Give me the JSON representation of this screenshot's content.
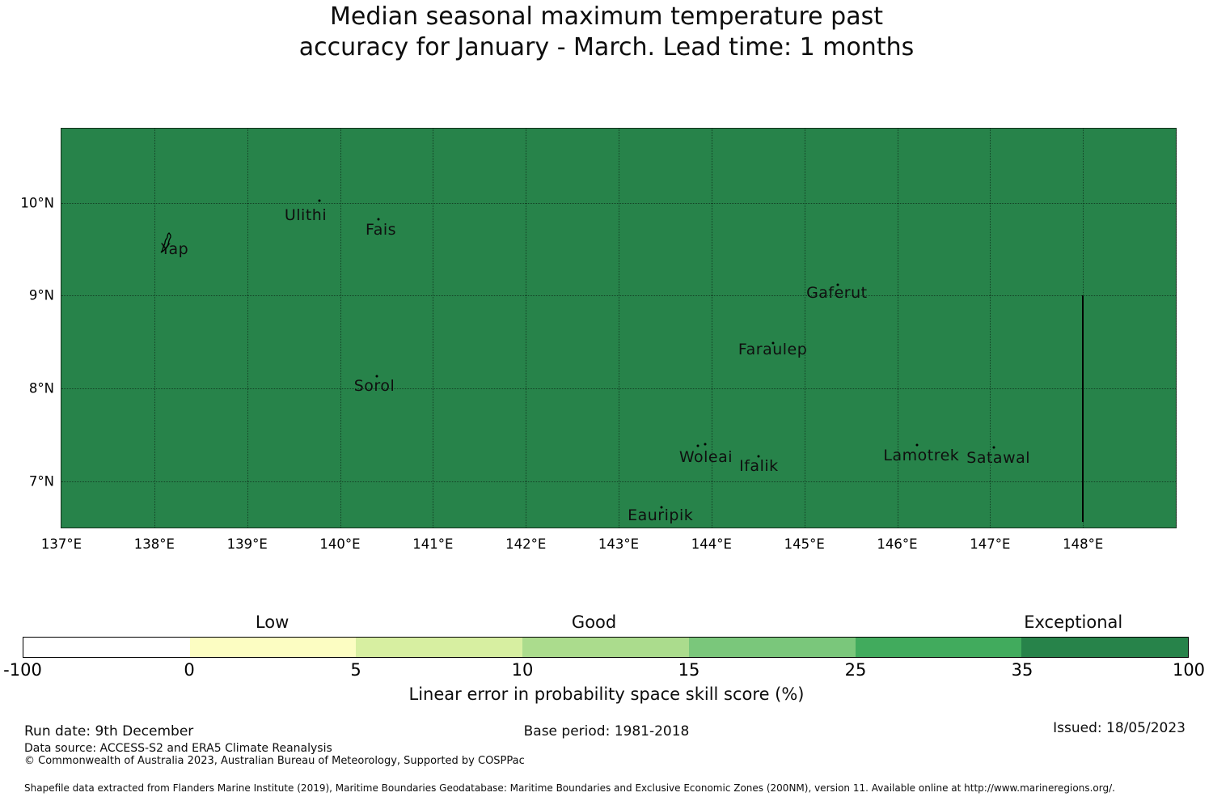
{
  "title": {
    "line1": "Median seasonal maximum temperature past",
    "line2": "accuracy for January - March. Lead time: 1 months"
  },
  "map": {
    "fill_color": "#27834a",
    "extent": {
      "lon_min": 137,
      "lon_max": 149,
      "lat_min": 6.5,
      "lat_max": 10.8
    },
    "x_ticks": [
      {
        "label": "137°E",
        "lon": 137
      },
      {
        "label": "138°E",
        "lon": 138
      },
      {
        "label": "139°E",
        "lon": 139
      },
      {
        "label": "140°E",
        "lon": 140
      },
      {
        "label": "141°E",
        "lon": 141
      },
      {
        "label": "142°E",
        "lon": 142
      },
      {
        "label": "143°E",
        "lon": 143
      },
      {
        "label": "144°E",
        "lon": 144
      },
      {
        "label": "145°E",
        "lon": 145
      },
      {
        "label": "146°E",
        "lon": 146
      },
      {
        "label": "147°E",
        "lon": 147
      },
      {
        "label": "148°E",
        "lon": 148
      }
    ],
    "y_ticks": [
      {
        "label": "10°N",
        "lat": 10
      },
      {
        "label": "9°N",
        "lat": 9
      },
      {
        "label": "8°N",
        "lat": 8
      },
      {
        "label": "7°N",
        "lat": 7
      }
    ],
    "unlabeled_gridline_lons": [
      149
    ],
    "islands": [
      {
        "name": "Yap",
        "label_lon": 138.22,
        "label_lat": 9.5,
        "markers": [
          {
            "type": "shape",
            "lon": 138.14,
            "lat": 9.55
          }
        ]
      },
      {
        "name": "Ulithi",
        "label_lon": 139.63,
        "label_lat": 9.87,
        "markers": [
          {
            "type": "dot",
            "lon": 139.78,
            "lat": 10.02
          }
        ]
      },
      {
        "name": "Fais",
        "label_lon": 140.44,
        "label_lat": 9.71,
        "markers": [
          {
            "type": "dot",
            "lon": 140.41,
            "lat": 9.82
          }
        ]
      },
      {
        "name": "Gaferut",
        "label_lon": 145.35,
        "label_lat": 9.03,
        "markers": [
          {
            "type": "dot",
            "lon": 145.36,
            "lat": 9.12
          }
        ]
      },
      {
        "name": "Faraulep",
        "label_lon": 144.66,
        "label_lat": 8.42,
        "markers": [
          {
            "type": "dot",
            "lon": 144.66,
            "lat": 8.49
          }
        ]
      },
      {
        "name": "Sorol",
        "label_lon": 140.37,
        "label_lat": 8.03,
        "markers": [
          {
            "type": "dot",
            "lon": 140.4,
            "lat": 8.13
          }
        ]
      },
      {
        "name": "Woleai",
        "label_lon": 143.94,
        "label_lat": 7.26,
        "markers": [
          {
            "type": "dot",
            "lon": 143.85,
            "lat": 7.38
          },
          {
            "type": "dot",
            "lon": 143.93,
            "lat": 7.4
          }
        ]
      },
      {
        "name": "Ifalik",
        "label_lon": 144.51,
        "label_lat": 7.16,
        "markers": [
          {
            "type": "dot",
            "lon": 144.51,
            "lat": 7.27
          }
        ]
      },
      {
        "name": "Lamotrek",
        "label_lon": 146.26,
        "label_lat": 7.28,
        "markers": [
          {
            "type": "dot",
            "lon": 146.21,
            "lat": 7.39
          }
        ]
      },
      {
        "name": "Satawal",
        "label_lon": 147.09,
        "label_lat": 7.25,
        "markers": [
          {
            "type": "dot",
            "lon": 147.04,
            "lat": 7.36
          }
        ]
      },
      {
        "name": "Eauripik",
        "label_lon": 143.45,
        "label_lat": 6.63,
        "markers": [
          {
            "type": "dot",
            "lon": 143.46,
            "lat": 6.72
          }
        ]
      }
    ],
    "eez_boundary": {
      "lon": 148,
      "lat_from": 9.0,
      "lat_to": 6.56
    }
  },
  "colorbar": {
    "segments": [
      {
        "from": -100,
        "to": 0,
        "color": "#ffffff"
      },
      {
        "from": 0,
        "to": 5,
        "color": "#fcfdc2"
      },
      {
        "from": 5,
        "to": 10,
        "color": "#d7efa1"
      },
      {
        "from": 10,
        "to": 15,
        "color": "#abdc8d"
      },
      {
        "from": 15,
        "to": 25,
        "color": "#7ac77b"
      },
      {
        "from": 25,
        "to": 35,
        "color": "#41ab5d"
      },
      {
        "from": 35,
        "to": 100,
        "color": "#27834a"
      }
    ],
    "tick_labels": [
      "-100",
      "0",
      "5",
      "10",
      "15",
      "25",
      "35",
      "100"
    ],
    "categories": [
      {
        "label": "Low",
        "position_pct": 21.4
      },
      {
        "label": "Good",
        "position_pct": 49.0
      },
      {
        "label": "Exceptional",
        "position_pct": 90.1
      }
    ],
    "axis_label": "Linear error in probability space skill score (%)"
  },
  "footer": {
    "run_date": "Run date: 9th December",
    "base_period": "Base period: 1981-2018",
    "issued": "Issued: 18/05/2023",
    "data_source": "Data source: ACCESS-S2 and ERA5 Climate Reanalysis",
    "copyright": "© Commonwealth of Australia 2023, Australian Bureau of Meteorology, Supported by COSPPac",
    "shapefile_note": "Shapefile data extracted from Flanders Marine Institute (2019), Maritime Boundaries Geodatabase: Maritime Boundaries and Exclusive Economic Zones (200NM), version 11. Available online at http://www.marineregions.org/."
  }
}
